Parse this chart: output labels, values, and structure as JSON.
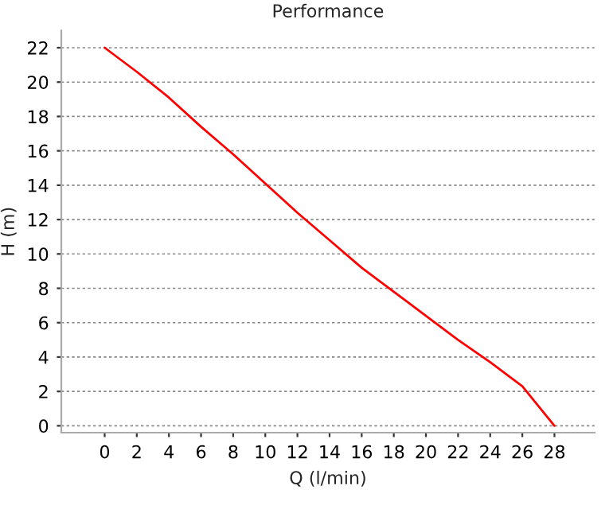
{
  "chart_data": {
    "type": "line",
    "title": "Performance",
    "xlabel": "Q (l/min)",
    "ylabel": "H (m)",
    "x": [
      0,
      2,
      4,
      6,
      8,
      10,
      12,
      14,
      16,
      18,
      20,
      22,
      24,
      26,
      28
    ],
    "series": [
      {
        "color": "#ff0000",
        "values": [
          22,
          20.6,
          19.1,
          17.4,
          15.8,
          14.1,
          12.4,
          10.8,
          9.2,
          7.8,
          6.4,
          5.0,
          3.7,
          2.3,
          0
        ]
      }
    ],
    "xlim": [
      -2.7,
      30.5
    ],
    "ylim": [
      -0.4,
      23
    ],
    "xticks": [
      0,
      2,
      4,
      6,
      8,
      10,
      12,
      14,
      16,
      18,
      20,
      22,
      24,
      26,
      28
    ],
    "yticks": [
      0,
      2,
      4,
      6,
      8,
      10,
      12,
      14,
      16,
      18,
      20,
      22
    ],
    "grid": "y",
    "line_style": "solid",
    "legend": false
  }
}
